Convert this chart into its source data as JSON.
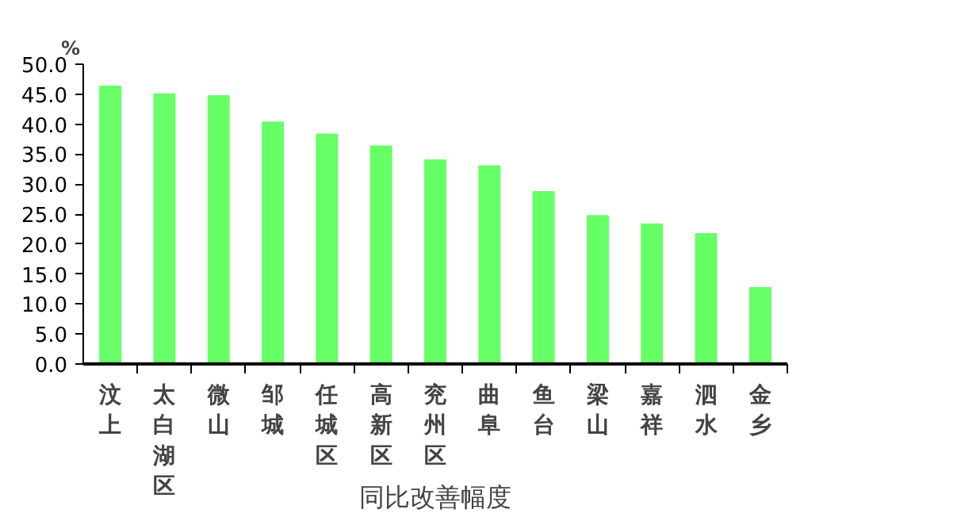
{
  "chart_data": {
    "type": "bar",
    "xlabel": "同比改善幅度",
    "ylabel": "%",
    "categories": [
      "汶上",
      "太白湖区",
      "微山",
      "邹城",
      "任城区",
      "高新区",
      "兖州区",
      "曲阜",
      "鱼台",
      "梁山",
      "嘉祥",
      "泗水",
      "金乡"
    ],
    "values": [
      46.3,
      45.0,
      44.7,
      40.3,
      38.3,
      36.3,
      34.0,
      33.0,
      28.7,
      24.7,
      23.3,
      21.7,
      12.7
    ],
    "color": "#66ff66",
    "ylim": [
      0,
      50
    ],
    "yticks": [
      {
        "value": 0,
        "label": "0.0"
      },
      {
        "value": 5,
        "label": "5.0"
      },
      {
        "value": 10,
        "label": "10.0"
      },
      {
        "value": 15,
        "label": "15.0"
      },
      {
        "value": 20,
        "label": "20.0"
      },
      {
        "value": 25,
        "label": "25.0"
      },
      {
        "value": 30,
        "label": "30.0"
      },
      {
        "value": 35,
        "label": "35.0"
      },
      {
        "value": 40,
        "label": "40.0"
      },
      {
        "value": 45,
        "label": "45.0"
      },
      {
        "value": 50,
        "label": "50.0"
      }
    ],
    "grid": false
  }
}
